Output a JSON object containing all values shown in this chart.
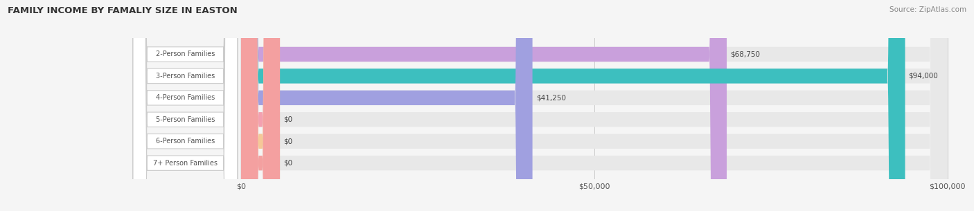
{
  "title": "FAMILY INCOME BY FAMALIY SIZE IN EASTON",
  "source": "Source: ZipAtlas.com",
  "categories": [
    "2-Person Families",
    "3-Person Families",
    "4-Person Families",
    "5-Person Families",
    "6-Person Families",
    "7+ Person Families"
  ],
  "values": [
    68750,
    94000,
    41250,
    0,
    0,
    0
  ],
  "bar_colors": [
    "#c9a0dc",
    "#3dbfbf",
    "#a0a0e0",
    "#f4a0b0",
    "#f5c897",
    "#f4a0a0"
  ],
  "label_texts": [
    "$68,750",
    "$94,000",
    "$41,250",
    "$0",
    "$0",
    "$0"
  ],
  "xlim": [
    0,
    100000
  ],
  "xtick_values": [
    0,
    50000,
    100000
  ],
  "xtick_labels": [
    "$0",
    "$50,000",
    "$100,000"
  ],
  "background_color": "#f5f5f5",
  "bar_background": "#e8e8e8",
  "bar_height": 0.68,
  "figsize": [
    14.06,
    3.05
  ],
  "dpi": 100
}
